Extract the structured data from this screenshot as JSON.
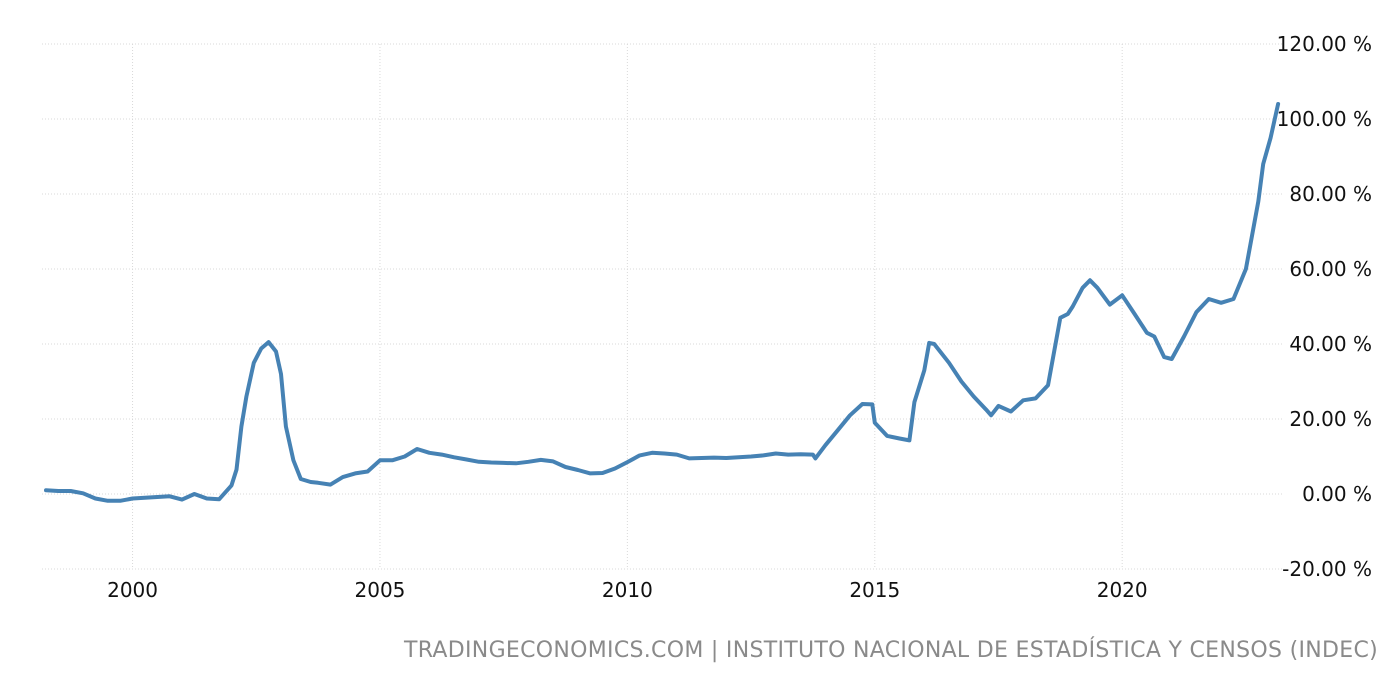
{
  "source_credit": "TRADINGECONOMICS.COM | INSTITUTO NACIONAL DE ESTADÍSTICA Y CENSOS (INDEC)",
  "colors": {
    "series": "#4682b4",
    "grid": "#d9d9d9",
    "text": "#111111",
    "credit": "#8a8a8a"
  },
  "chart_data": {
    "type": "line",
    "title": "",
    "xlabel": "",
    "ylabel": "",
    "grid": true,
    "legend": "none",
    "y_axis_side": "right",
    "xlim": [
      1998.17,
      2023.25
    ],
    "ylim": [
      -20,
      120
    ],
    "x_tick_values": [
      2000,
      2005,
      2010,
      2015,
      2020
    ],
    "x_tick_labels": [
      "2000",
      "2005",
      "2010",
      "2015",
      "2020"
    ],
    "y_tick_values": [
      120,
      100,
      80,
      60,
      40,
      20,
      0,
      -20
    ],
    "y_tick_labels": [
      "120.00 %",
      "100.00 %",
      "80.00 %",
      "60.00 %",
      "40.00 %",
      "20.00 %",
      "0.00 %",
      "-20.00 %"
    ],
    "series": [
      {
        "x": [
          1998.25,
          1998.5,
          1998.75,
          1999.0,
          1999.25,
          1999.5,
          1999.75,
          2000.0,
          2000.25,
          2000.5,
          2000.75,
          2001.0,
          2001.25,
          2001.5,
          2001.75,
          2002.0,
          2002.1,
          2002.2,
          2002.3,
          2002.45,
          2002.6,
          2002.75,
          2002.9,
          2003.0,
          2003.1,
          2003.25,
          2003.4,
          2003.6,
          2003.75,
          2004.0,
          2004.25,
          2004.5,
          2004.75,
          2005.0,
          2005.25,
          2005.5,
          2005.75,
          2006.0,
          2006.25,
          2006.5,
          2006.75,
          2007.0,
          2007.25,
          2007.5,
          2007.75,
          2008.0,
          2008.25,
          2008.5,
          2008.75,
          2009.0,
          2009.25,
          2009.5,
          2009.75,
          2010.0,
          2010.25,
          2010.5,
          2010.75,
          2011.0,
          2011.25,
          2011.5,
          2011.75,
          2012.0,
          2012.25,
          2012.5,
          2012.75,
          2013.0,
          2013.25,
          2013.5,
          2013.75,
          2013.8,
          2014.0,
          2014.25,
          2014.5,
          2014.75,
          2014.95,
          2015.0,
          2015.25,
          2015.5,
          2015.7,
          2015.8,
          2016.0,
          2016.1,
          2016.2,
          2016.5,
          2016.75,
          2017.0,
          2017.25,
          2017.35,
          2017.5,
          2017.75,
          2018.0,
          2018.25,
          2018.5,
          2018.75,
          2018.9,
          2019.0,
          2019.2,
          2019.35,
          2019.5,
          2019.75,
          2020.0,
          2020.25,
          2020.5,
          2020.65,
          2020.85,
          2021.0,
          2021.25,
          2021.5,
          2021.75,
          2022.0,
          2022.25,
          2022.5,
          2022.75,
          2022.85,
          2023.0,
          2023.15
        ],
        "y": [
          1.0,
          0.8,
          0.8,
          0.2,
          -1.2,
          -1.8,
          -1.8,
          -1.2,
          -1.0,
          -0.8,
          -0.6,
          -1.5,
          0.0,
          -1.2,
          -1.4,
          2.3,
          6.5,
          18.0,
          26.0,
          35.0,
          38.8,
          40.5,
          38.0,
          32.0,
          18.0,
          9.0,
          4.0,
          3.2,
          3.0,
          2.5,
          4.5,
          5.5,
          6.0,
          9.0,
          9.0,
          10.0,
          12.0,
          11.0,
          10.5,
          9.8,
          9.2,
          8.6,
          8.4,
          8.3,
          8.2,
          8.6,
          9.1,
          8.7,
          7.2,
          6.4,
          5.5,
          5.6,
          6.8,
          8.5,
          10.3,
          11.0,
          10.8,
          10.5,
          9.5,
          9.6,
          9.7,
          9.6,
          9.8,
          10.0,
          10.3,
          10.8,
          10.5,
          10.6,
          10.5,
          9.5,
          13.0,
          17.0,
          21.0,
          24.0,
          23.9,
          19.0,
          15.5,
          14.8,
          14.3,
          24.5,
          33.0,
          40.3,
          40.0,
          35.0,
          30.0,
          26.0,
          22.5,
          21.0,
          23.5,
          22.0,
          25.0,
          25.5,
          29.0,
          47.0,
          48.0,
          50.0,
          55.0,
          57.0,
          55.0,
          50.5,
          53.0,
          48.0,
          43.0,
          42.0,
          36.5,
          36.0,
          42.0,
          48.5,
          52.0,
          51.0,
          52.0,
          60.0,
          78.0,
          88.0,
          95.0,
          104.0
        ]
      }
    ]
  }
}
